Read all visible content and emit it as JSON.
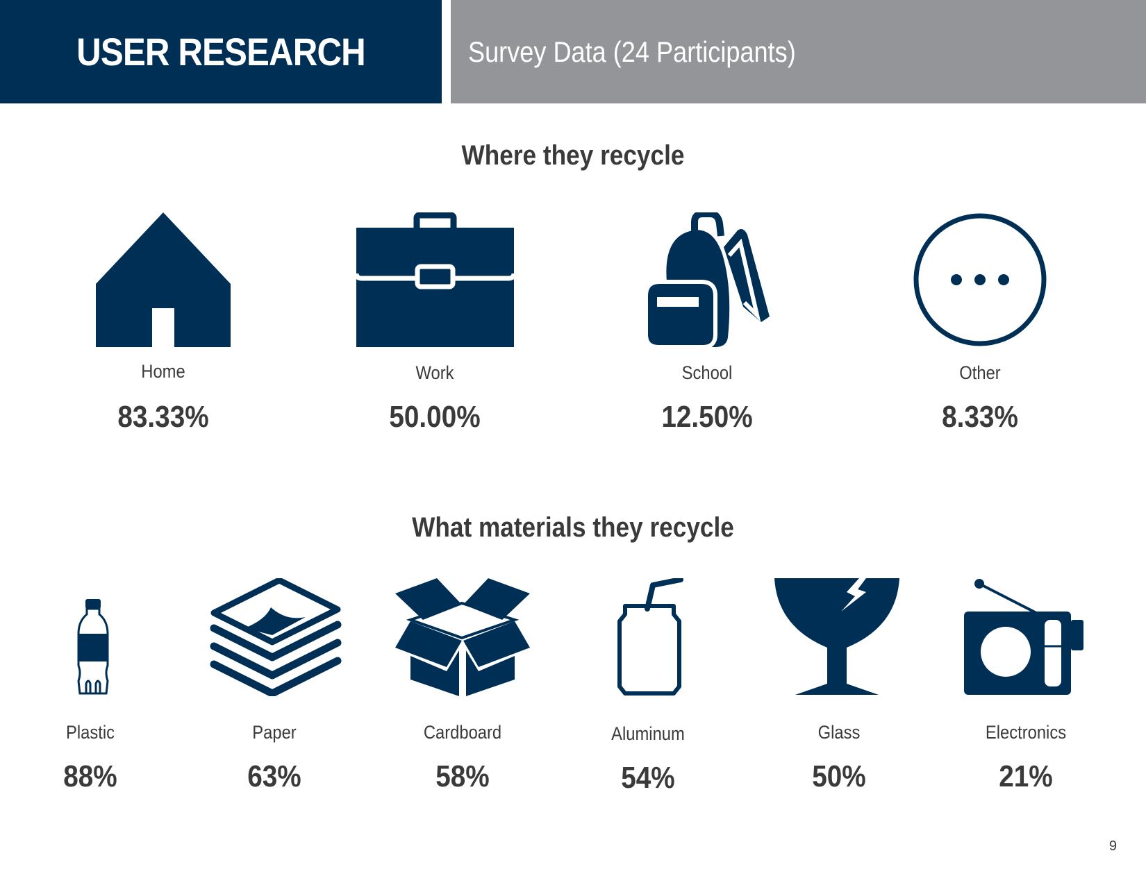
{
  "header": {
    "title": "USER RESEARCH",
    "subtitle": "Survey Data (24 Participants)"
  },
  "locations": {
    "title": "Where they recycle",
    "items": [
      {
        "label": "Home",
        "value": "83.33%",
        "icon": "house-icon"
      },
      {
        "label": "Work",
        "value": "50.00%",
        "icon": "briefcase-icon"
      },
      {
        "label": "School",
        "value": "12.50%",
        "icon": "backpack-icon"
      },
      {
        "label": "Other",
        "value": "8.33%",
        "icon": "ellipsis-circle-icon"
      }
    ]
  },
  "materials": {
    "title": "What materials they recycle",
    "items": [
      {
        "label": "Plastic",
        "value": "88%",
        "icon": "bottle-icon"
      },
      {
        "label": "Paper",
        "value": "63%",
        "icon": "paper-stack-icon"
      },
      {
        "label": "Cardboard",
        "value": "58%",
        "icon": "open-box-icon"
      },
      {
        "label": "Aluminum",
        "value": "54%",
        "icon": "soda-can-icon"
      },
      {
        "label": "Glass",
        "value": "50%",
        "icon": "broken-glass-icon"
      },
      {
        "label": "Electronics",
        "value": "21%",
        "icon": "radio-icon"
      }
    ]
  },
  "page_number": "9",
  "colors": {
    "navy": "#002f56",
    "gray": "#939598",
    "text": "#3a3a3a"
  }
}
